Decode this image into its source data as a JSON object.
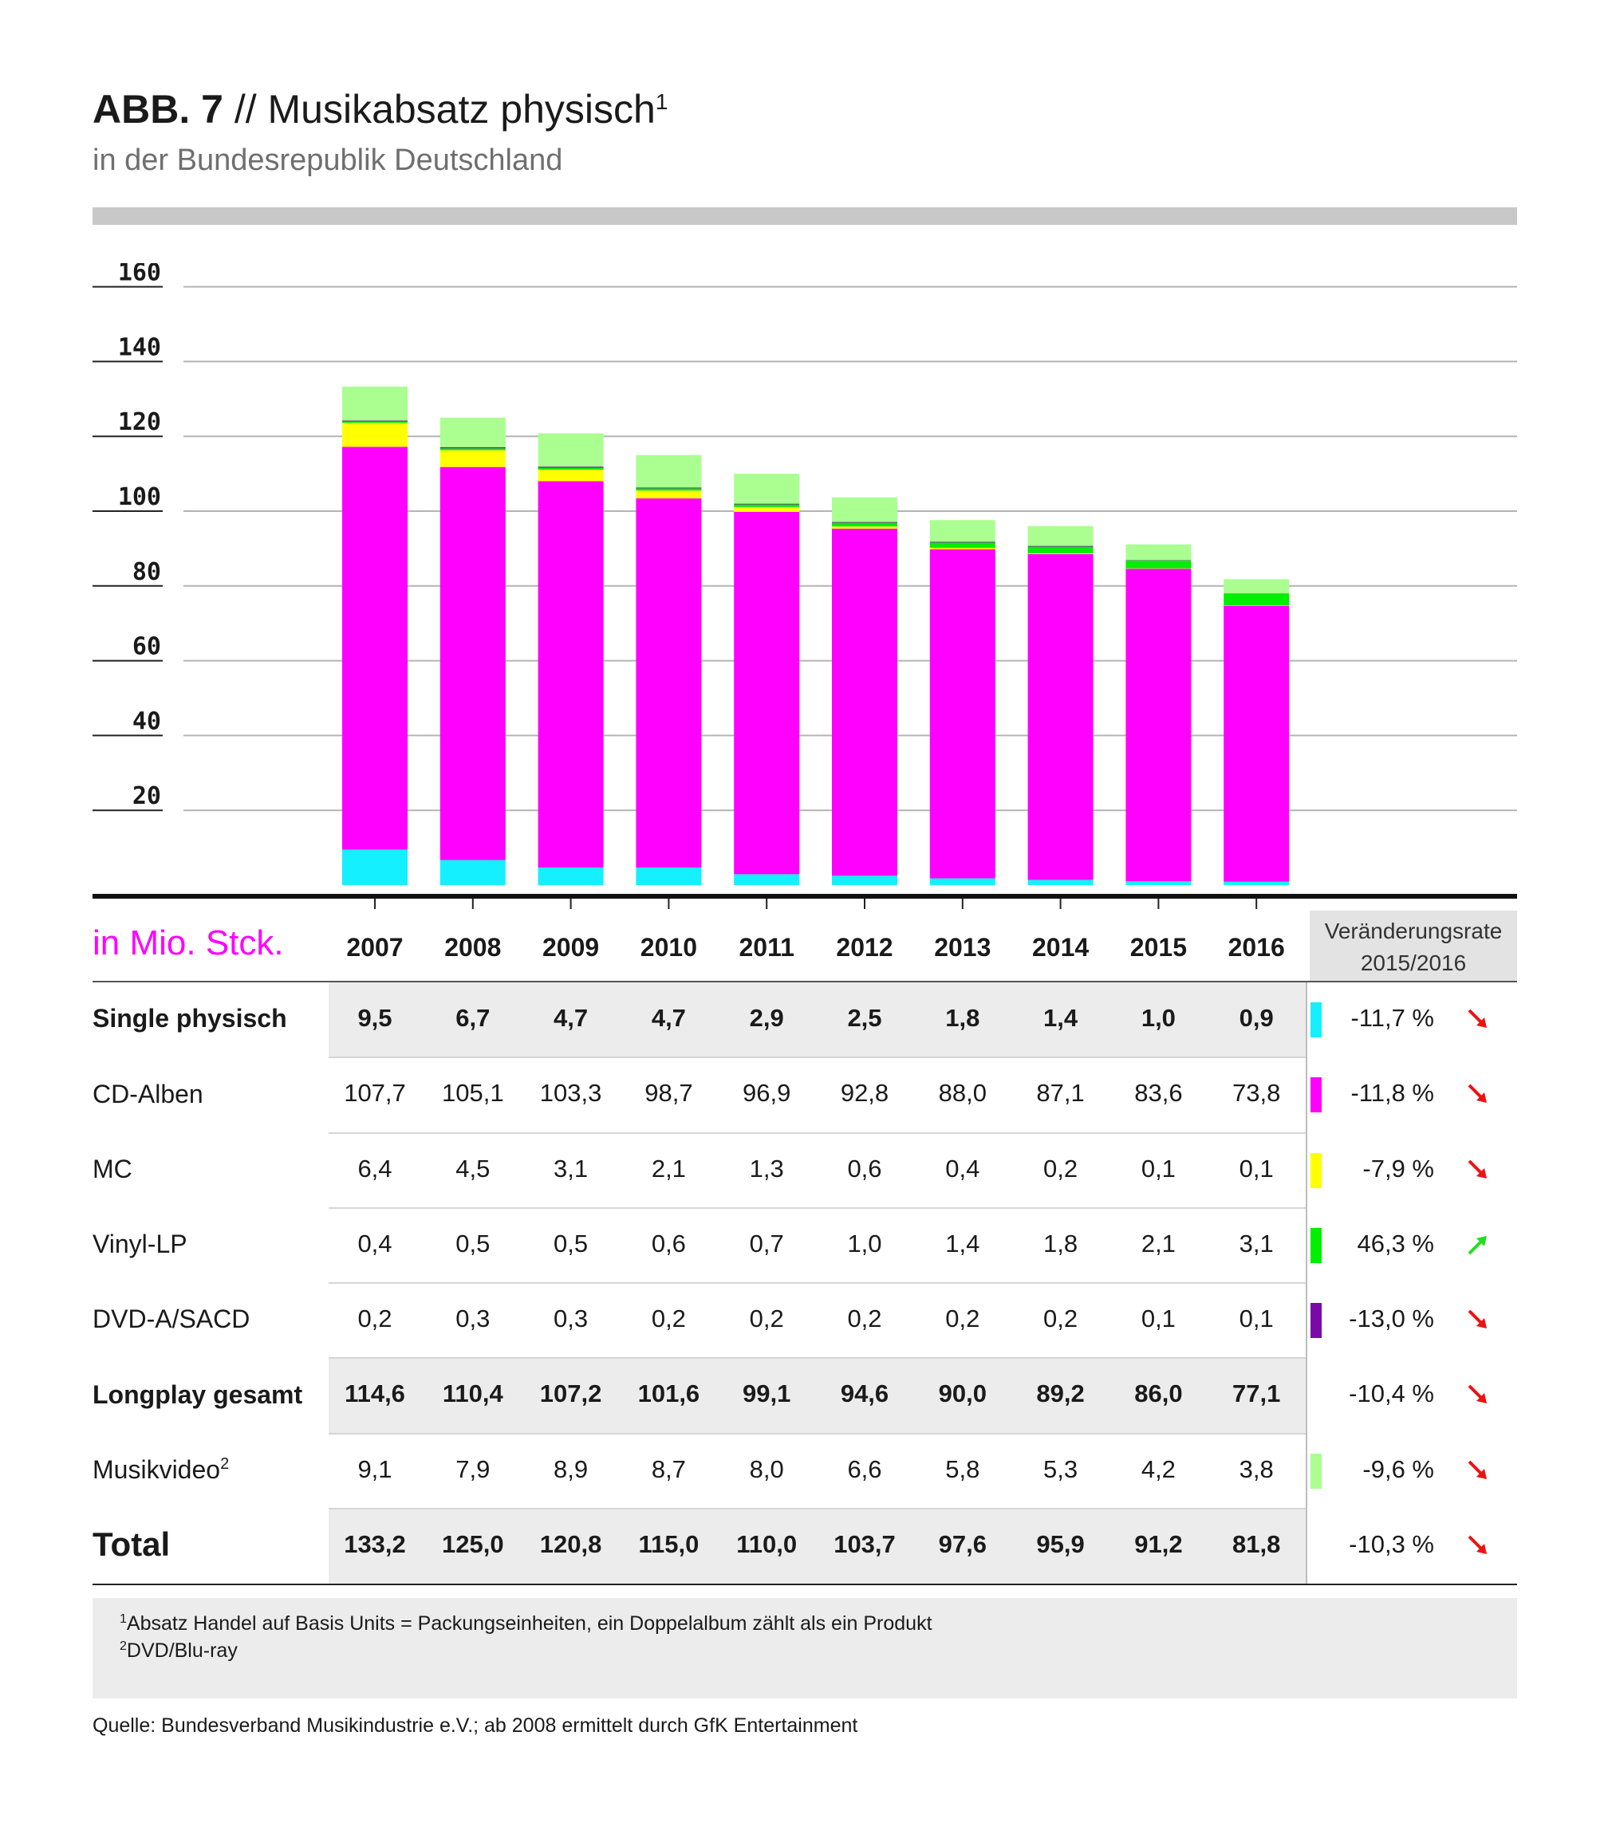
{
  "header": {
    "title_bold": "ABB. 7",
    "title_rest": "// Musikabsatz physisch",
    "title_sup": "1",
    "subtitle": "in der Bundesrepublik Deutschland"
  },
  "table": {
    "unit_label": "in Mio. Stck.",
    "change_header_line1": "Veränderungsrate",
    "change_header_line2": "2015/2016",
    "years": [
      "2007",
      "2008",
      "2009",
      "2010",
      "2011",
      "2012",
      "2013",
      "2014",
      "2015",
      "2016"
    ],
    "rows": [
      {
        "label": "Single physisch",
        "sup": "",
        "style": "bold",
        "shaded": true,
        "swatch": "#14f0ff",
        "values": [
          "9,5",
          "6,7",
          "4,7",
          "4,7",
          "2,9",
          "2,5",
          "1,8",
          "1,4",
          "1,0",
          "0,9"
        ],
        "rate": "-11,7 %",
        "trend": "down"
      },
      {
        "label": "CD-Alben",
        "sup": "",
        "style": "normal",
        "shaded": false,
        "swatch": "#ff00ff",
        "values": [
          "107,7",
          "105,1",
          "103,3",
          "98,7",
          "96,9",
          "92,8",
          "88,0",
          "87,1",
          "83,6",
          "73,8"
        ],
        "rate": "-11,8 %",
        "trend": "down"
      },
      {
        "label": "MC",
        "sup": "",
        "style": "normal",
        "shaded": false,
        "swatch": "#ffff00",
        "values": [
          "6,4",
          "4,5",
          "3,1",
          "2,1",
          "1,3",
          "0,6",
          "0,4",
          "0,2",
          "0,1",
          "0,1"
        ],
        "rate": "-7,9 %",
        "trend": "down"
      },
      {
        "label": "Vinyl-LP",
        "sup": "",
        "style": "normal",
        "shaded": false,
        "swatch": "#00ee00",
        "values": [
          "0,4",
          "0,5",
          "0,5",
          "0,6",
          "0,7",
          "1,0",
          "1,4",
          "1,8",
          "2,1",
          "3,1"
        ],
        "rate": "46,3 %",
        "trend": "up"
      },
      {
        "label": "DVD-A/SACD",
        "sup": "",
        "style": "normal",
        "shaded": false,
        "swatch": "#7a0aa8",
        "values": [
          "0,2",
          "0,3",
          "0,3",
          "0,2",
          "0,2",
          "0,2",
          "0,2",
          "0,2",
          "0,1",
          "0,1"
        ],
        "rate": "-13,0 %",
        "trend": "down"
      },
      {
        "label": "Longplay gesamt",
        "sup": "",
        "style": "bold",
        "shaded": true,
        "swatch": "",
        "values": [
          "114,6",
          "110,4",
          "107,2",
          "101,6",
          "99,1",
          "94,6",
          "90,0",
          "89,2",
          "86,0",
          "77,1"
        ],
        "rate": "-10,4 %",
        "trend": "down"
      },
      {
        "label": "Musikvideo",
        "sup": "2",
        "style": "normal",
        "shaded": false,
        "swatch": "#aaff90",
        "values": [
          "9,1",
          "7,9",
          "8,9",
          "8,7",
          "8,0",
          "6,6",
          "5,8",
          "5,3",
          "4,2",
          "3,8"
        ],
        "rate": "-9,6 %",
        "trend": "down"
      },
      {
        "label": "Total",
        "sup": "",
        "style": "total",
        "shaded": true,
        "swatch": "",
        "values": [
          "133,2",
          "125,0",
          "120,8",
          "115,0",
          "110,0",
          "103,7",
          "97,6",
          "95,9",
          "91,2",
          "81,8"
        ],
        "rate": "-10,3 %",
        "trend": "down"
      }
    ]
  },
  "chart_data": {
    "type": "bar",
    "stacked": true,
    "title": "Musikabsatz physisch",
    "xlabel": "",
    "ylabel": "",
    "ylim": [
      0,
      160
    ],
    "yticks": [
      20,
      40,
      60,
      80,
      100,
      120,
      140,
      160
    ],
    "grid": true,
    "categories": [
      "2007",
      "2008",
      "2009",
      "2010",
      "2011",
      "2012",
      "2013",
      "2014",
      "2015",
      "2016"
    ],
    "series": [
      {
        "name": "Single physisch",
        "color": "#14f0ff",
        "values": [
          9.5,
          6.7,
          4.7,
          4.7,
          2.9,
          2.5,
          1.8,
          1.4,
          1.0,
          0.9
        ]
      },
      {
        "name": "CD-Alben",
        "color": "#ff00ff",
        "values": [
          107.7,
          105.1,
          103.3,
          98.7,
          96.9,
          92.8,
          88.0,
          87.1,
          83.6,
          73.8
        ]
      },
      {
        "name": "MC",
        "color": "#ffff00",
        "values": [
          6.4,
          4.5,
          3.1,
          2.1,
          1.3,
          0.6,
          0.4,
          0.2,
          0.1,
          0.1
        ]
      },
      {
        "name": "Vinyl-LP",
        "color": "#00ee00",
        "values": [
          0.4,
          0.5,
          0.5,
          0.6,
          0.7,
          1.0,
          1.4,
          1.8,
          2.1,
          3.1
        ]
      },
      {
        "name": "DVD-A/SACD",
        "color": "#7a0aa8",
        "values": [
          0.2,
          0.3,
          0.3,
          0.2,
          0.2,
          0.2,
          0.2,
          0.2,
          0.1,
          0.1
        ]
      },
      {
        "name": "Musikvideo",
        "color": "#aaff90",
        "values": [
          9.1,
          7.9,
          8.9,
          8.7,
          8.0,
          6.6,
          5.8,
          5.3,
          4.2,
          3.8
        ]
      }
    ]
  },
  "footnotes": [
    {
      "sup": "1",
      "text": "Absatz Handel auf Basis Units = Packungseinheiten, ein Doppelalbum zählt als ein Produkt"
    },
    {
      "sup": "2",
      "text": "DVD/Blu-ray"
    }
  ],
  "source": "Quelle: Bundesverband Musikindustrie e.V.; ab 2008 ermittelt durch GfK Entertainment"
}
